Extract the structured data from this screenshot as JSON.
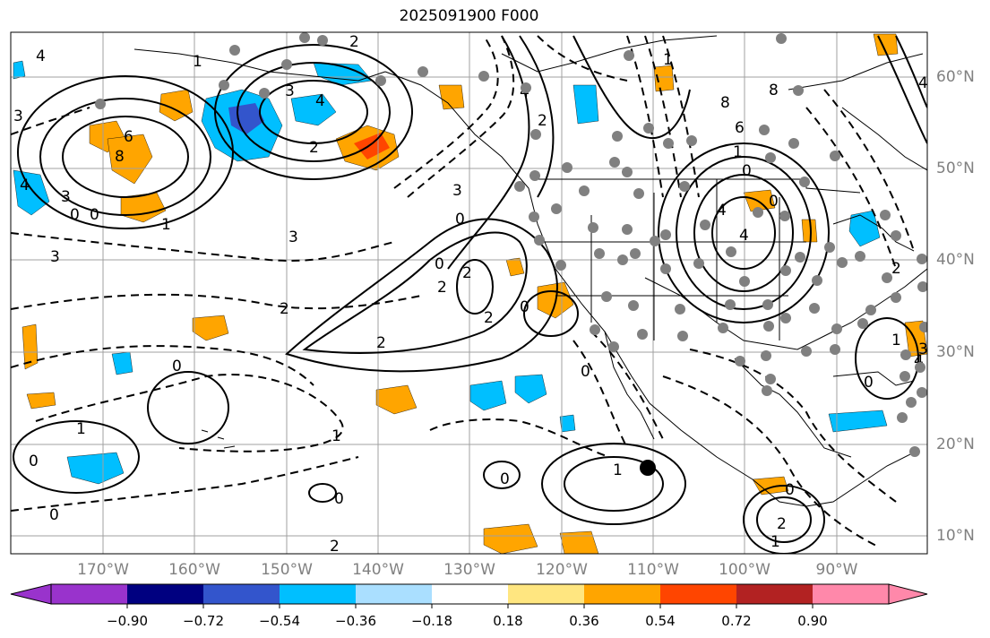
{
  "title": "2025091900 F000",
  "latitude_labels": [
    "60°N",
    "50°N",
    "40°N",
    "30°N",
    "20°N",
    "10°N"
  ],
  "longitude_labels": [
    "170°W",
    "160°W",
    "150°W",
    "140°W",
    "130°W",
    "120°W",
    "110°W",
    "100°W",
    "90°W"
  ],
  "colorbar": {
    "ticks": [
      "−0.90",
      "−0.72",
      "−0.54",
      "−0.36",
      "−0.18",
      "0.18",
      "0.36",
      "0.54",
      "0.72",
      "0.90"
    ],
    "colors": [
      "#9933cc",
      "#000080",
      "#3355cc",
      "#00bfff",
      "#aadfff",
      "#ffffff",
      "#ffe680",
      "#ffa500",
      "#ff4500",
      "#b22222",
      "#ff88aa"
    ]
  },
  "contour_labels": [
    "4",
    "1",
    "2",
    "1",
    "3",
    "4",
    "4",
    "2",
    "8",
    "4",
    "3",
    "6",
    "8",
    "4",
    "3",
    "0",
    "0",
    "1",
    "3",
    "3",
    "2",
    "2",
    "3",
    "0",
    "0",
    "2",
    "2",
    "2",
    "2",
    "0",
    "8",
    "6",
    "0",
    "1",
    "0",
    "4",
    "4",
    "2",
    "0",
    "0",
    "1",
    "1",
    "0",
    "0",
    "1",
    "0",
    "0",
    "2",
    "1",
    "0",
    "0",
    "1",
    "3",
    "4",
    "2"
  ],
  "colors": {
    "line": "#000000",
    "grid": "#a0a0a0",
    "land": "#000000",
    "marker": "#808080"
  }
}
